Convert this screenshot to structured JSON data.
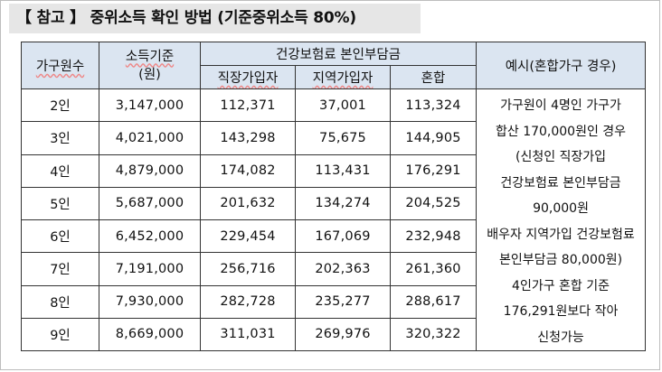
{
  "title": "【 참고 】 중위소득 확인 방법 (기준중위소득 80%)",
  "headers": {
    "household": "가구원수",
    "income_line1": "소득기준",
    "income_line2": "(원)",
    "premium_group": "건강보험료 본인부담금",
    "employee": "직장가입자",
    "regional": "지역가입자",
    "mixed": "혼합",
    "example": "예시(혼합가구 경우)"
  },
  "rows": [
    {
      "household": "2인",
      "income": "3,147,000",
      "employee": "112,371",
      "regional": "37,001",
      "mixed": "113,324"
    },
    {
      "household": "3인",
      "income": "4,021,000",
      "employee": "143,298",
      "regional": "75,675",
      "mixed": "144,905"
    },
    {
      "household": "4인",
      "income": "4,879,000",
      "employee": "174,082",
      "regional": "113,431",
      "mixed": "176,291"
    },
    {
      "household": "5인",
      "income": "5,687,000",
      "employee": "201,632",
      "regional": "134,274",
      "mixed": "204,525"
    },
    {
      "household": "6인",
      "income": "6,452,000",
      "employee": "229,454",
      "regional": "167,069",
      "mixed": "232,948"
    },
    {
      "household": "7인",
      "income": "7,191,000",
      "employee": "256,716",
      "regional": "202,363",
      "mixed": "261,360"
    },
    {
      "household": "8인",
      "income": "7,930,000",
      "employee": "282,728",
      "regional": "235,277",
      "mixed": "288,617"
    },
    {
      "household": "9인",
      "income": "8,669,000",
      "employee": "311,031",
      "regional": "269,976",
      "mixed": "320,322"
    }
  ],
  "example_lines": [
    "가구원이 4명인 가구가",
    "합산 170,000원인 경우",
    "(신청인 직장가입",
    "건강보험료 본인부담금",
    "90,000원",
    "배우자 지역가입 건강보험료",
    "본인부담금 80,000원)",
    "4인가구 혼합 기준",
    "176,291원보다 작아",
    "신청가능"
  ]
}
